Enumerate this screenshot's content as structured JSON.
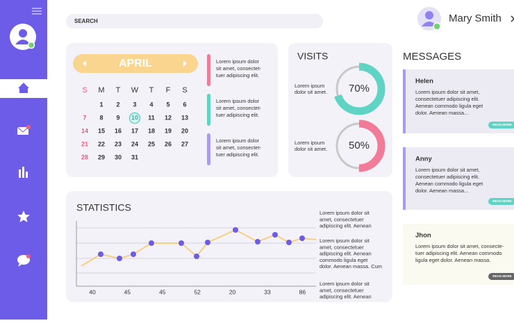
{
  "search": {
    "placeholder": "SEARCH"
  },
  "user": {
    "name": "Mary Smith"
  },
  "calendar": {
    "month": "APRIL",
    "weekdays": [
      "S",
      "M",
      "T",
      "W",
      "T",
      "F",
      "S"
    ],
    "weeks": [
      [
        null,
        1,
        2,
        3,
        4,
        5,
        6
      ],
      [
        7,
        8,
        9,
        10,
        11,
        12,
        13
      ],
      [
        14,
        15,
        16,
        17,
        18,
        19,
        20
      ],
      [
        21,
        22,
        23,
        24,
        25,
        26,
        27
      ],
      [
        28,
        29,
        30,
        31
      ]
    ],
    "today": 10,
    "notes": [
      {
        "color": "#f27b97",
        "lines": [
          "Lorem ipsum dolor",
          "sit amet, consectet-",
          "tuer adipiscing elit."
        ]
      },
      {
        "color": "#5fd3c4",
        "lines": [
          "Lorem ipsum dolor",
          "sit amet, consectet-",
          "tuer adipiscing elit."
        ]
      },
      {
        "color": "#a99af0",
        "lines": [
          "Lorem ipsum dolor",
          "sit amet, consectet-",
          "tuer adipiscing elit."
        ]
      }
    ]
  },
  "visits": {
    "title": "VISITS",
    "items": [
      {
        "lines": [
          "Lorem ipsum",
          "dolor sit amet."
        ],
        "value": 70,
        "value_label": "70%",
        "color": "#5fd3c4"
      },
      {
        "lines": [
          "Lorem ipsum",
          "dolor sit amet."
        ],
        "value": 50,
        "value_label": "50%",
        "color": "#f27b97"
      }
    ]
  },
  "statistics": {
    "title": "STATISTICS",
    "x_labels": [
      "40",
      "45",
      "45",
      "52",
      "20",
      "33",
      "86"
    ],
    "notes": [
      [
        "Lorem ipsum dolor sit",
        "amet, consectetuer",
        "adipiscing elit. Aenean"
      ],
      [
        "Lorem ipsum dolor sit",
        "amet, consectetuer",
        "adipiscing elit. Aenean",
        "commodo ligula eget",
        "dolor. Aenean massa. Cum"
      ],
      [
        "Lorem ipsum dolor sit",
        "amet, consectetuer",
        "adipiscing elit. Aenean"
      ]
    ]
  },
  "messages": {
    "title": "MESSAGES",
    "items": [
      {
        "name": "Helen",
        "lines": [
          "Lorem ipsum dolor sit amet,",
          "consectetuer adipiscing elit.",
          "Aenean commodo ligula eget",
          "dolor. Aenean massa..."
        ],
        "button": "READ MORE"
      },
      {
        "name": "Anny",
        "lines": [
          "Lorem ipsum dolor sit amet,",
          "consectetuer adipiscing elit.",
          "Aenean commodo ligula eget",
          "dolor. Aenean massa..."
        ],
        "button": "READ MORE"
      },
      {
        "name": "Jhon",
        "lines": [
          "Lorem ipsum dolor sit amet, consecte-",
          "tuer adipiscing elit. Aenean commodo",
          "ligula eget dolor. Aenean massa."
        ],
        "button": "READ MORE"
      }
    ]
  }
}
